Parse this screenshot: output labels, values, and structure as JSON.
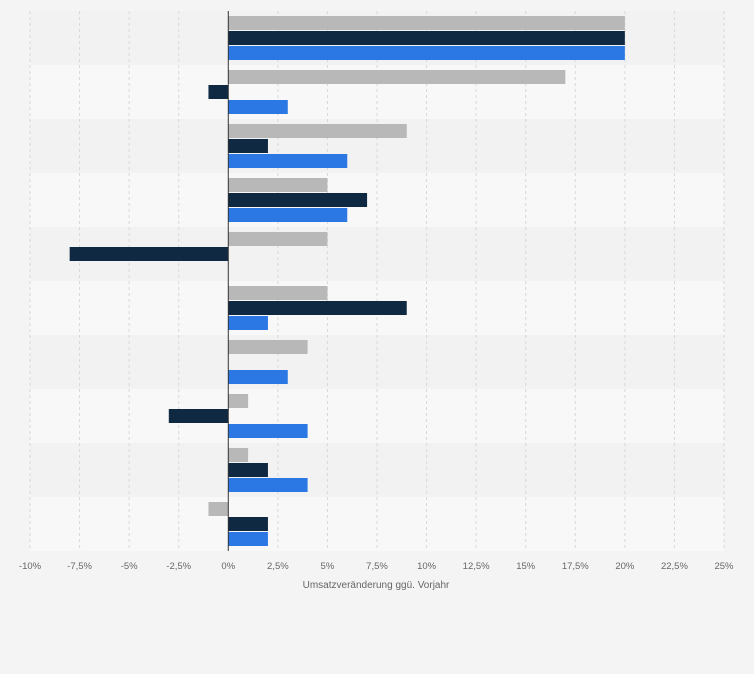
{
  "chart_data": {
    "type": "bar",
    "orientation": "horizontal",
    "categories": [
      "",
      "",
      "",
      "",
      "",
      "",
      "",
      "",
      "",
      ""
    ],
    "series": [
      {
        "values": [
          20,
          17,
          9,
          5,
          5,
          5,
          4,
          1,
          1,
          -1
        ]
      },
      {
        "values": [
          20,
          -1,
          2,
          7,
          -8,
          9,
          0,
          -3,
          2,
          2
        ]
      },
      {
        "values": [
          20,
          3,
          6,
          6,
          0,
          2,
          3,
          4,
          4,
          2
        ]
      }
    ],
    "xlabel": "Umsatzveränderung ggü. Vorjahr",
    "xlim": [
      -10,
      25
    ],
    "xticks": [
      -10,
      -7.5,
      -5,
      -2.5,
      0,
      2.5,
      5,
      7.5,
      10,
      12.5,
      15,
      17.5,
      20,
      22.5,
      25
    ],
    "xtick_labels": [
      "-10%",
      "-7,5%",
      "-5%",
      "-2,5%",
      "0%",
      "2,5%",
      "5%",
      "7,5%",
      "10%",
      "12,5%",
      "15%",
      "17,5%",
      "20%",
      "22,5%",
      "25%"
    ],
    "grid": true,
    "legend": false
  },
  "colors": {
    "series": [
      "#b8b8b8",
      "#0f2942",
      "#2b78e4"
    ],
    "band_light": "#f8f8f8",
    "band_dark": "#f2f2f2",
    "grid": "#d8d8d8",
    "axis": "#333333",
    "text": "#666666"
  }
}
